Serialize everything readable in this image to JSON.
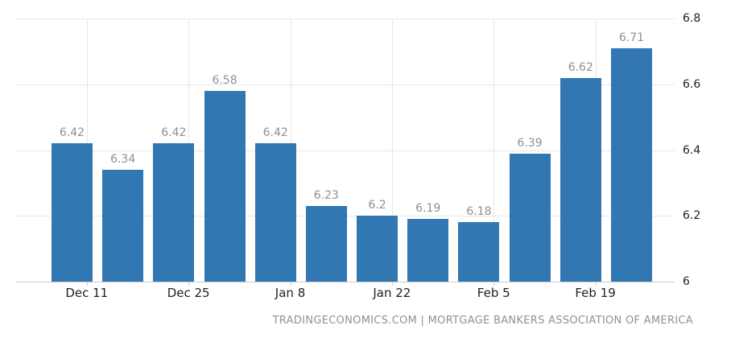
{
  "chart_data": {
    "type": "bar",
    "title": "",
    "values": [
      6.42,
      6.34,
      6.42,
      6.58,
      6.42,
      6.23,
      6.2,
      6.19,
      6.18,
      6.39,
      6.62,
      6.71
    ],
    "value_labels": [
      "6.42",
      "6.34",
      "6.42",
      "6.58",
      "6.42",
      "6.23",
      "6.2",
      "6.19",
      "6.18",
      "6.39",
      "6.62",
      "6.71"
    ],
    "x_tick_labels": [
      "Dec 11",
      "Dec 25",
      "Jan 8",
      "Jan 22",
      "Feb 5",
      "Feb 19"
    ],
    "y_tick_labels": [
      "6",
      "6.2",
      "6.4",
      "6.6",
      "6.8"
    ],
    "y_tick_values": [
      6.0,
      6.2,
      6.4,
      6.6,
      6.8
    ],
    "ylim": [
      6.0,
      6.8
    ],
    "xlabel": "",
    "ylabel": "",
    "grid": true,
    "legend": "none",
    "y_axis_position": "right",
    "caption": "TRADINGECONOMICS.COM | MORTGAGE BANKERS ASSOCIATION OF AMERICA"
  },
  "colors": {
    "bar": "#3177b2",
    "gridline": "#e6e6e6",
    "axis_line": "#cccccc",
    "value_label": "#8f8f8f",
    "axis_label": "#1f1f1f",
    "caption": "#8f9193",
    "background": "#ffffff"
  }
}
